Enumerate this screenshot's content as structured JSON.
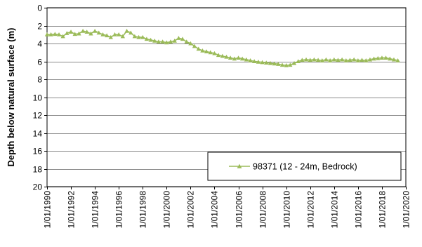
{
  "chart_data": {
    "type": "line",
    "title": "",
    "xlabel": "",
    "ylabel": "Depth below natural surface (m)",
    "y_inverted": true,
    "ylim": [
      0,
      20
    ],
    "y_ticks": [
      0,
      2,
      4,
      6,
      8,
      10,
      12,
      14,
      16,
      18,
      20
    ],
    "xlim": [
      "1990-01-01",
      "2020-01-01"
    ],
    "x_tick_labels": [
      "1/01/1990",
      "1/01/1992",
      "1/01/1994",
      "1/01/1996",
      "1/01/1998",
      "1/01/2000",
      "1/01/2002",
      "1/01/2004",
      "1/01/2006",
      "1/01/2008",
      "1/01/2010",
      "1/01/2012",
      "1/01/2014",
      "1/01/2016",
      "1/01/2018",
      "1/01/2020"
    ],
    "grid": {
      "horizontal": true,
      "vertical": false
    },
    "legend_position": "bottom-right",
    "series": [
      {
        "name": "98371 (12 - 24m, Bedrock)",
        "color": "#9bbb59",
        "marker": "triangle",
        "points": [
          [
            "1990-01-01",
            3.0
          ],
          [
            "1990-05-01",
            3.0
          ],
          [
            "1990-09-01",
            2.95
          ],
          [
            "1991-01-01",
            3.0
          ],
          [
            "1991-05-01",
            3.2
          ],
          [
            "1991-09-01",
            2.85
          ],
          [
            "1992-01-01",
            2.7
          ],
          [
            "1992-05-01",
            2.95
          ],
          [
            "1992-09-01",
            2.9
          ],
          [
            "1993-01-01",
            2.6
          ],
          [
            "1993-05-01",
            2.7
          ],
          [
            "1993-09-01",
            2.9
          ],
          [
            "1994-01-01",
            2.6
          ],
          [
            "1994-05-01",
            2.8
          ],
          [
            "1994-09-01",
            3.0
          ],
          [
            "1995-01-01",
            3.1
          ],
          [
            "1995-05-01",
            3.3
          ],
          [
            "1995-09-01",
            3.0
          ],
          [
            "1996-01-01",
            3.0
          ],
          [
            "1996-05-01",
            3.2
          ],
          [
            "1996-09-01",
            2.6
          ],
          [
            "1997-01-01",
            2.8
          ],
          [
            "1997-05-01",
            3.2
          ],
          [
            "1997-09-01",
            3.3
          ],
          [
            "1998-01-01",
            3.3
          ],
          [
            "1998-05-01",
            3.5
          ],
          [
            "1998-09-01",
            3.6
          ],
          [
            "1999-01-01",
            3.7
          ],
          [
            "1999-05-01",
            3.8
          ],
          [
            "1999-09-01",
            3.8
          ],
          [
            "2000-01-01",
            3.9
          ],
          [
            "2000-05-01",
            3.8
          ],
          [
            "2000-09-01",
            3.7
          ],
          [
            "2001-01-01",
            3.4
          ],
          [
            "2001-05-01",
            3.5
          ],
          [
            "2001-09-01",
            3.8
          ],
          [
            "2002-01-01",
            4.0
          ],
          [
            "2002-05-01",
            4.3
          ],
          [
            "2002-09-01",
            4.6
          ],
          [
            "2003-01-01",
            4.8
          ],
          [
            "2003-05-01",
            4.9
          ],
          [
            "2003-09-01",
            5.0
          ],
          [
            "2004-01-01",
            5.1
          ],
          [
            "2004-05-01",
            5.3
          ],
          [
            "2004-09-01",
            5.4
          ],
          [
            "2005-01-01",
            5.5
          ],
          [
            "2005-05-01",
            5.6
          ],
          [
            "2005-09-01",
            5.7
          ],
          [
            "2006-01-01",
            5.6
          ],
          [
            "2006-05-01",
            5.7
          ],
          [
            "2006-09-01",
            5.8
          ],
          [
            "2007-01-01",
            5.9
          ],
          [
            "2007-05-01",
            6.0
          ],
          [
            "2007-09-01",
            6.05
          ],
          [
            "2008-01-01",
            6.1
          ],
          [
            "2008-05-01",
            6.15
          ],
          [
            "2008-09-01",
            6.2
          ],
          [
            "2009-01-01",
            6.25
          ],
          [
            "2009-05-01",
            6.3
          ],
          [
            "2009-09-01",
            6.4
          ],
          [
            "2010-01-01",
            6.45
          ],
          [
            "2010-05-01",
            6.4
          ],
          [
            "2010-09-01",
            6.2
          ],
          [
            "2011-01-01",
            6.0
          ],
          [
            "2011-05-01",
            5.85
          ],
          [
            "2011-09-01",
            5.8
          ],
          [
            "2012-01-01",
            5.85
          ],
          [
            "2012-05-01",
            5.8
          ],
          [
            "2012-09-01",
            5.85
          ],
          [
            "2013-01-01",
            5.9
          ],
          [
            "2013-05-01",
            5.8
          ],
          [
            "2013-09-01",
            5.9
          ],
          [
            "2014-01-01",
            5.8
          ],
          [
            "2014-05-01",
            5.85
          ],
          [
            "2014-09-01",
            5.8
          ],
          [
            "2015-01-01",
            5.9
          ],
          [
            "2015-05-01",
            5.85
          ],
          [
            "2015-09-01",
            5.8
          ],
          [
            "2016-01-01",
            5.9
          ],
          [
            "2016-05-01",
            5.85
          ],
          [
            "2016-09-01",
            5.9
          ],
          [
            "2017-01-01",
            5.8
          ],
          [
            "2017-05-01",
            5.7
          ],
          [
            "2017-09-01",
            5.65
          ],
          [
            "2018-01-01",
            5.6
          ],
          [
            "2018-05-01",
            5.6
          ],
          [
            "2018-09-01",
            5.7
          ],
          [
            "2019-01-01",
            5.8
          ],
          [
            "2019-05-01",
            5.9
          ]
        ]
      }
    ]
  }
}
